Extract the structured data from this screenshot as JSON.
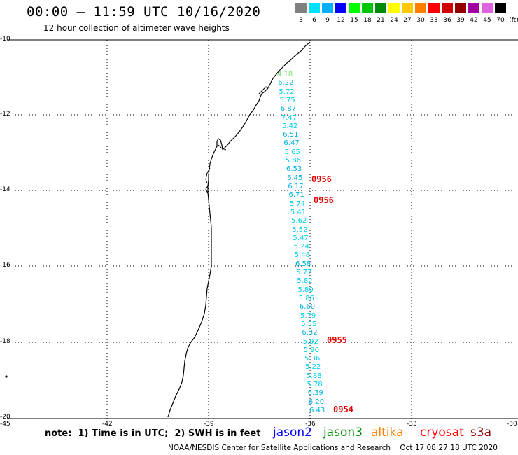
{
  "title": "00:00 – 11:59 UTC 10/16/2020",
  "subtitle": "12 hour collection of altimeter wave heights",
  "legend": {
    "unit": "(ft)",
    "items": [
      {
        "label": "3",
        "color": "#808080"
      },
      {
        "label": "6",
        "color": "#00e0ff"
      },
      {
        "label": "9",
        "color": "#00b0ff"
      },
      {
        "label": "12",
        "color": "#0000ff"
      },
      {
        "label": "15",
        "color": "#00ff00"
      },
      {
        "label": "18",
        "color": "#00c800"
      },
      {
        "label": "21",
        "color": "#008c00"
      },
      {
        "label": "24",
        "color": "#ffff00"
      },
      {
        "label": "27",
        "color": "#ffc800"
      },
      {
        "label": "30",
        "color": "#ff8000"
      },
      {
        "label": "33",
        "color": "#ff0000"
      },
      {
        "label": "36",
        "color": "#d00000"
      },
      {
        "label": "39",
        "color": "#900000"
      },
      {
        "label": "42",
        "color": "#a000a0"
      },
      {
        "label": "45",
        "color": "#e060e0"
      },
      {
        "label": "70",
        "color": "#000000"
      }
    ]
  },
  "axes": {
    "lat_ticks": [
      "-10",
      "-12",
      "-14",
      "-16",
      "-18",
      "-20"
    ],
    "lon_ticks": [
      "-45",
      "-42",
      "-39",
      "-36",
      "-33",
      "-30"
    ]
  },
  "wave_heights": [
    {
      "value": "4.18",
      "color": "#70e070"
    },
    {
      "value": "6.22",
      "color": "#00b0e0"
    },
    {
      "value": "5.72",
      "color": "#00d0f0"
    },
    {
      "value": "5.75",
      "color": "#00d0f0"
    },
    {
      "value": "6.87",
      "color": "#00b0e0"
    },
    {
      "value": "7.47",
      "color": "#00d0f0"
    },
    {
      "value": "5.42",
      "color": "#00d0f0"
    },
    {
      "value": "6.51",
      "color": "#00b0e0"
    },
    {
      "value": "6.47",
      "color": "#00b0e0"
    },
    {
      "value": "5.65",
      "color": "#00d0f0"
    },
    {
      "value": "5.86",
      "color": "#00d0f0"
    },
    {
      "value": "6.53",
      "color": "#00b0e0"
    },
    {
      "value": "6.45",
      "color": "#00b0e0"
    },
    {
      "value": "6.17",
      "color": "#00b0e0"
    },
    {
      "value": "6.71",
      "color": "#00b0e0"
    },
    {
      "value": "5.74",
      "color": "#00d0f0"
    },
    {
      "value": "5.41",
      "color": "#00d0f0"
    },
    {
      "value": "5.62",
      "color": "#00d0f0"
    },
    {
      "value": "5.52",
      "color": "#00d0f0"
    },
    {
      "value": "5.47",
      "color": "#00d0f0"
    },
    {
      "value": "5.24",
      "color": "#00d0f0"
    },
    {
      "value": "5.48",
      "color": "#00d0f0"
    },
    {
      "value": "6.58",
      "color": "#00b0e0"
    },
    {
      "value": "5.77",
      "color": "#00d0f0"
    },
    {
      "value": "5.82",
      "color": "#00d0f0"
    },
    {
      "value": "5.80",
      "color": "#00d0f0"
    },
    {
      "value": "5.86",
      "color": "#00d0f0"
    },
    {
      "value": "6.60",
      "color": "#00b0e0"
    },
    {
      "value": "5.79",
      "color": "#00d0f0"
    },
    {
      "value": "5.55",
      "color": "#00d0f0"
    },
    {
      "value": "6.32",
      "color": "#00b0e0"
    },
    {
      "value": "5.92",
      "color": "#00d0f0"
    },
    {
      "value": "5.90",
      "color": "#00d0f0"
    },
    {
      "value": "5.36",
      "color": "#00d0f0"
    },
    {
      "value": "5.22",
      "color": "#00d0f0"
    },
    {
      "value": "5.88",
      "color": "#00d0f0"
    },
    {
      "value": "5.78",
      "color": "#00d0f0"
    },
    {
      "value": "6.39",
      "color": "#00b0e0"
    },
    {
      "value": "6.20",
      "color": "#00b0e0"
    },
    {
      "value": "6.43",
      "color": "#00b0e0"
    }
  ],
  "timestamps": [
    "0956",
    "0956",
    "0955",
    "0954"
  ],
  "footnote": "note:  1) Time is in UTC;  2) SWH is in feet",
  "satellites": [
    {
      "name": "jason2",
      "color": "#0000ff"
    },
    {
      "name": "jason3",
      "color": "#008c00"
    },
    {
      "name": "altika",
      "color": "#ff8000"
    },
    {
      "name": "cryosat",
      "color": "#ff0000"
    },
    {
      "name": "s3a",
      "color": "#900000"
    }
  ],
  "credit": "NOAA/NESDIS Center for Satellite Applications and Research    Oct 17 08:27:18 UTC 2020"
}
